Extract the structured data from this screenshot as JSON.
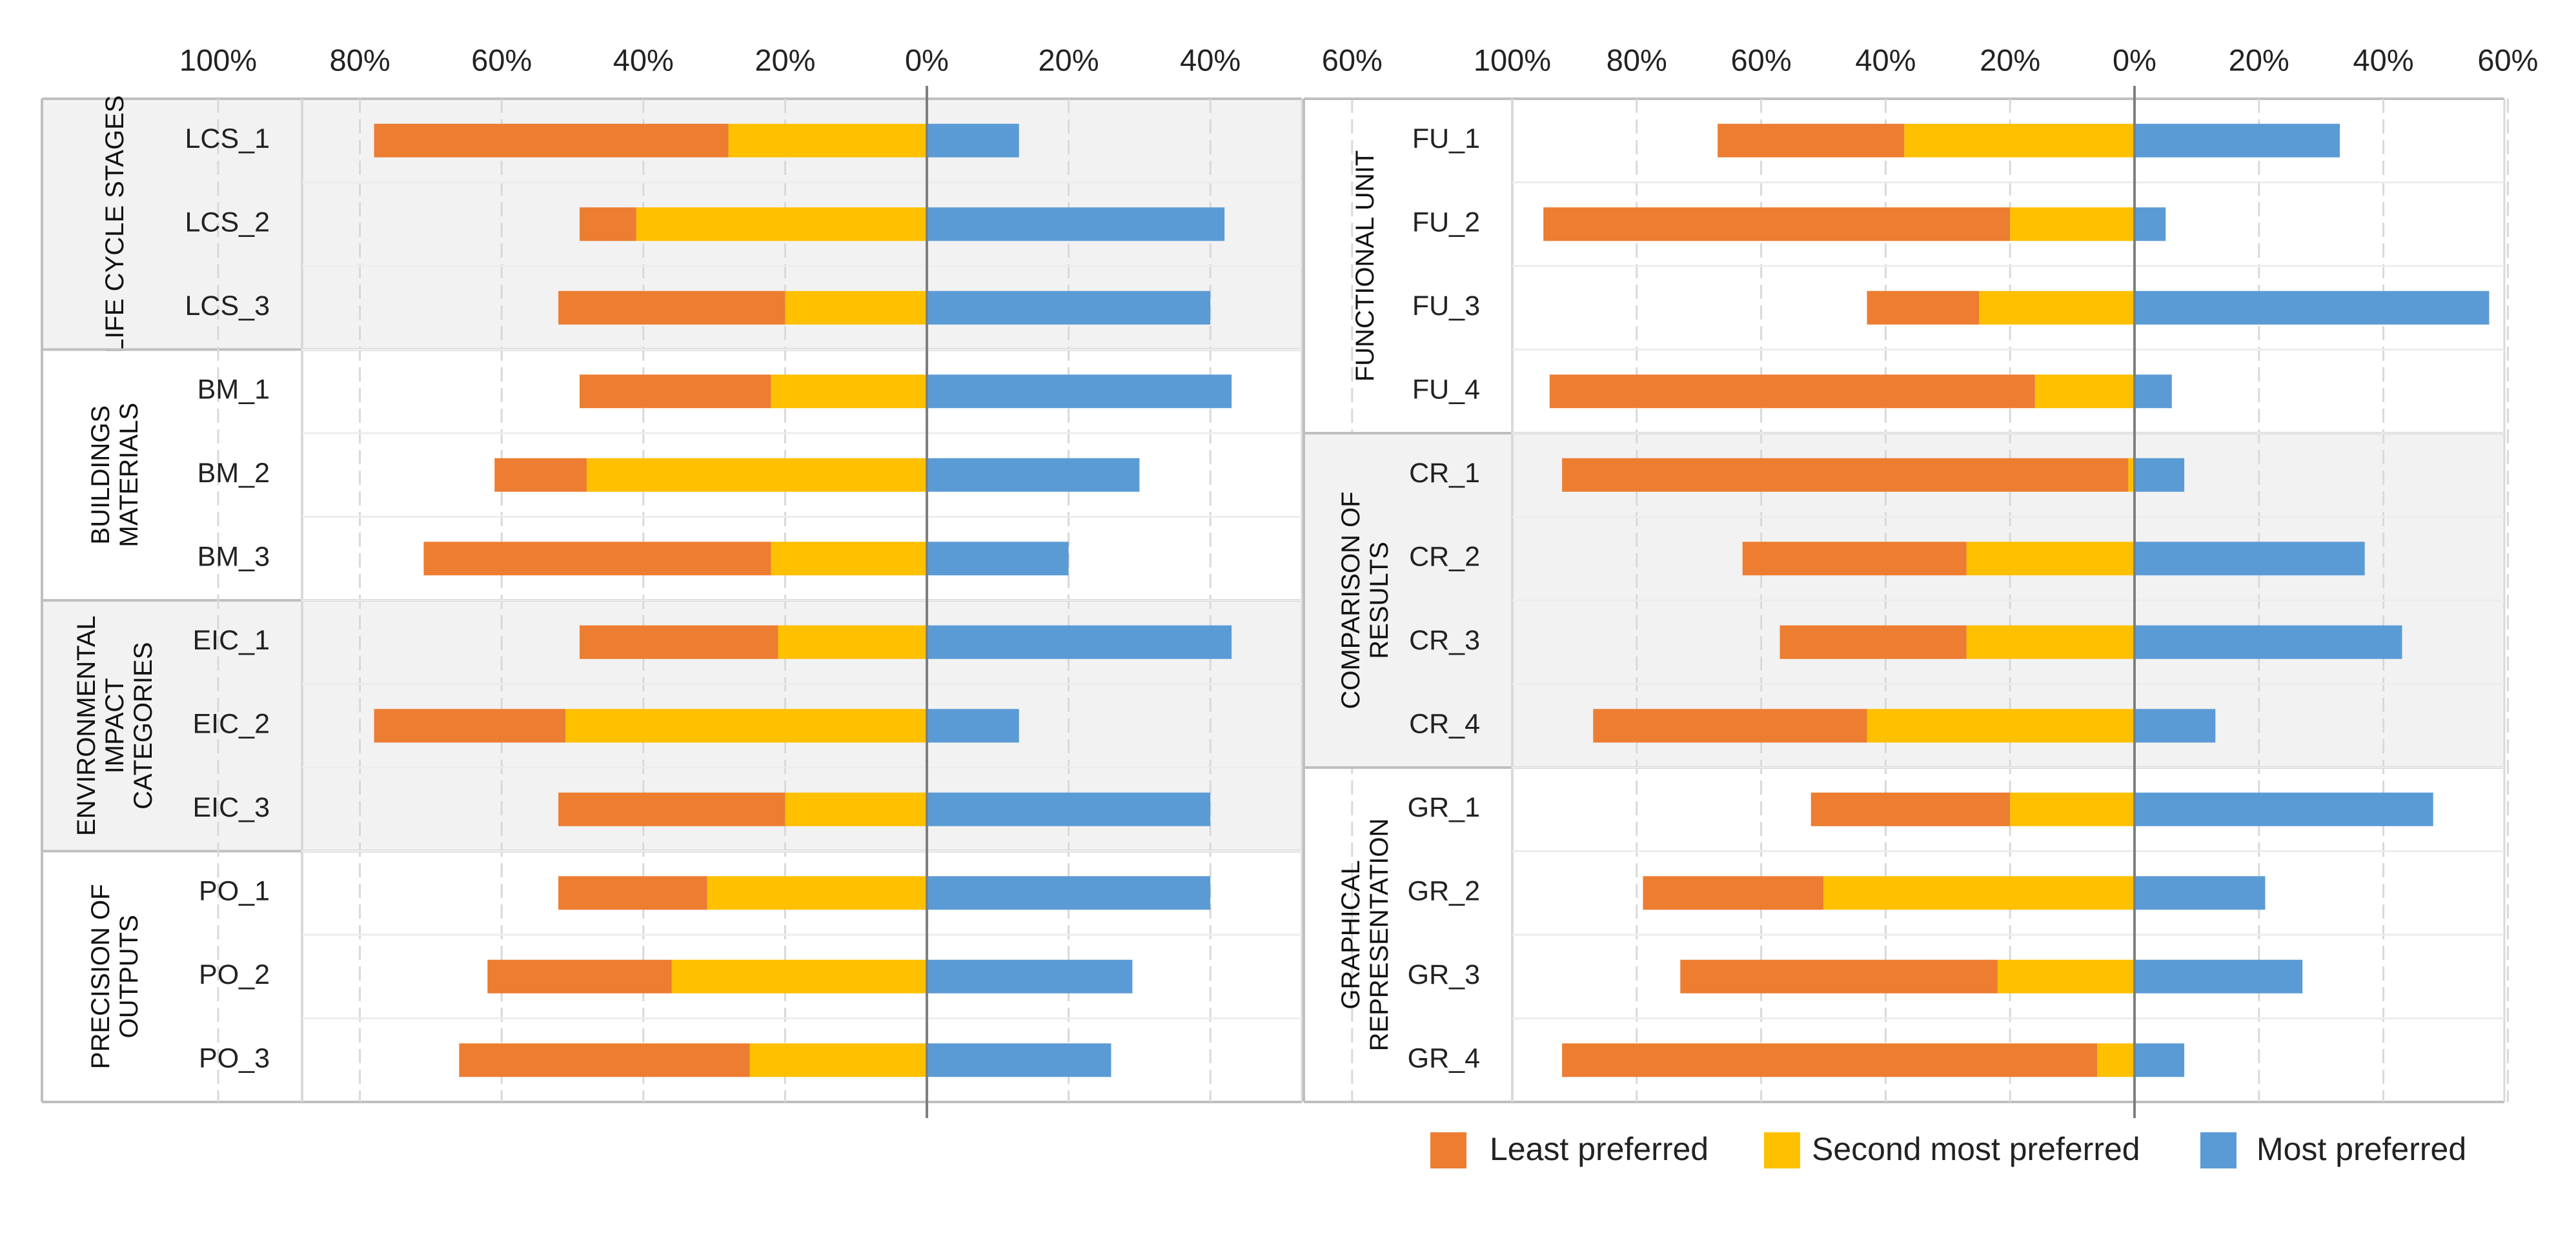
{
  "colors": {
    "least": "#ED7D31",
    "second": "#FFC000",
    "most": "#5B9BD5",
    "group_shade": "#F2F2F2",
    "grid": "#D9D9D9",
    "axis": "#7F7F7F"
  },
  "legend": [
    {
      "key": "least",
      "label": "Least preferred"
    },
    {
      "key": "second",
      "label": "Second most preferred"
    },
    {
      "key": "most",
      "label": "Most preferred"
    }
  ],
  "chart_data": [
    {
      "type": "bar",
      "orientation": "horizontal-diverging",
      "panel": "left",
      "xlim": [
        -100,
        60
      ],
      "ticks": [
        -100,
        -80,
        -60,
        -40,
        -20,
        0,
        20,
        40,
        60
      ],
      "tick_labels": [
        "100%",
        "80%",
        "60%",
        "40%",
        "20%",
        "0%",
        "20%",
        "40%",
        "60%"
      ],
      "grid": true,
      "legend_position": "bottom-right",
      "groups": [
        {
          "label": [
            "LIFE CYCLE STAGES"
          ],
          "shaded": true,
          "rows": [
            {
              "category": "LCS_1",
              "least": 50,
              "second": 28,
              "most": 13
            },
            {
              "category": "LCS_2",
              "least": 8,
              "second": 41,
              "most": 42
            },
            {
              "category": "LCS_3",
              "least": 32,
              "second": 20,
              "most": 40
            }
          ]
        },
        {
          "label": [
            "BUILDINGS",
            "MATERIALS"
          ],
          "shaded": false,
          "rows": [
            {
              "category": "BM_1",
              "least": 27,
              "second": 22,
              "most": 43
            },
            {
              "category": "BM_2",
              "least": 13,
              "second": 48,
              "most": 30
            },
            {
              "category": "BM_3",
              "least": 49,
              "second": 22,
              "most": 20
            }
          ]
        },
        {
          "label": [
            "ENVIRONMENTAL",
            "IMPACT",
            "CATEGORIES"
          ],
          "shaded": true,
          "rows": [
            {
              "category": "EIC_1",
              "least": 28,
              "second": 21,
              "most": 43
            },
            {
              "category": "EIC_2",
              "least": 27,
              "second": 51,
              "most": 13
            },
            {
              "category": "EIC_3",
              "least": 32,
              "second": 20,
              "most": 40
            }
          ]
        },
        {
          "label": [
            "PRECISION OF",
            "OUTPUTS"
          ],
          "shaded": false,
          "rows": [
            {
              "category": "PO_1",
              "least": 21,
              "second": 31,
              "most": 40
            },
            {
              "category": "PO_2",
              "least": 26,
              "second": 36,
              "most": 29
            },
            {
              "category": "PO_3",
              "least": 41,
              "second": 25,
              "most": 26
            }
          ]
        }
      ]
    },
    {
      "type": "bar",
      "orientation": "horizontal-diverging",
      "panel": "right",
      "xlim": [
        -100,
        60
      ],
      "ticks": [
        -100,
        -80,
        -60,
        -40,
        -20,
        0,
        20,
        40,
        60
      ],
      "tick_labels": [
        "100%",
        "80%",
        "60%",
        "40%",
        "20%",
        "0%",
        "20%",
        "40%",
        "60%"
      ],
      "grid": true,
      "groups": [
        {
          "label": [
            "FUNCTIONAL UNIT"
          ],
          "shaded": false,
          "rows": [
            {
              "category": "FU_1",
              "least": 30,
              "second": 37,
              "most": 33
            },
            {
              "category": "FU_2",
              "least": 75,
              "second": 20,
              "most": 5
            },
            {
              "category": "FU_3",
              "least": 18,
              "second": 25,
              "most": 57
            },
            {
              "category": "FU_4",
              "least": 78,
              "second": 16,
              "most": 6
            }
          ]
        },
        {
          "label": [
            "COMPARISON OF",
            "RESULTS"
          ],
          "shaded": true,
          "rows": [
            {
              "category": "CR_1",
              "least": 91,
              "second": 1,
              "most": 8
            },
            {
              "category": "CR_2",
              "least": 36,
              "second": 27,
              "most": 37
            },
            {
              "category": "CR_3",
              "least": 30,
              "second": 27,
              "most": 43
            },
            {
              "category": "CR_4",
              "least": 44,
              "second": 43,
              "most": 13
            }
          ]
        },
        {
          "label": [
            "GRAPHICAL",
            "REPRESENTATION"
          ],
          "shaded": false,
          "rows": [
            {
              "category": "GR_1",
              "least": 32,
              "second": 20,
              "most": 48
            },
            {
              "category": "GR_2",
              "least": 29,
              "second": 50,
              "most": 21
            },
            {
              "category": "GR_3",
              "least": 51,
              "second": 22,
              "most": 27
            },
            {
              "category": "GR_4",
              "least": 86,
              "second": 6,
              "most": 8
            }
          ]
        }
      ]
    }
  ]
}
